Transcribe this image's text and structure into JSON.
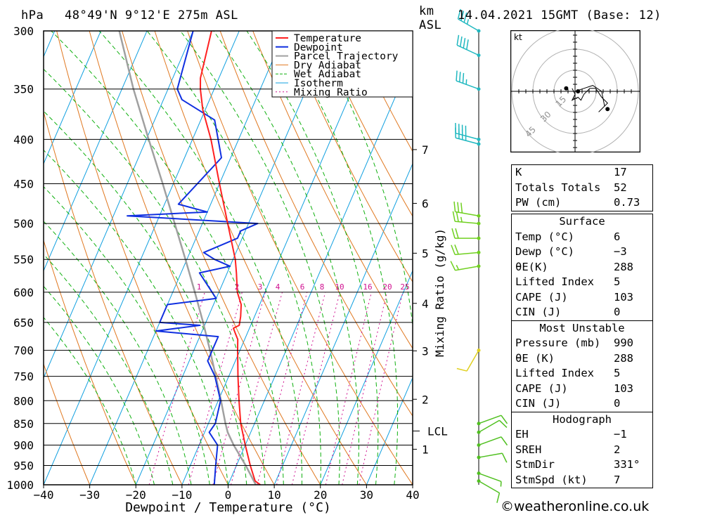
{
  "header": {
    "location": "48°49'N  9°12'E  275m  ASL",
    "datetime": "14.04.2021  15GMT  (Base: 12)",
    "hpa_label": "hPa",
    "km_label": "km",
    "asl_label": "ASL"
  },
  "footer": {
    "copyright": "©weatheronline.co.uk"
  },
  "colors": {
    "temperature": "#ff2020",
    "dewpoint": "#1030e0",
    "parcel": "#a0a0a0",
    "dry_adiabat": "#e07820",
    "wet_adiabat": "#10b010",
    "isotherm": "#10a0e0",
    "mixing_ratio": "#d01090",
    "wind": "#20c0c0"
  },
  "chart_data": {
    "type": "skew-t",
    "xlabel": "Dewpoint / Temperature (°C)",
    "ylabel_right": "Mixing Ratio (g/kg)",
    "x_ticks": [
      -40,
      -30,
      -20,
      -10,
      0,
      10,
      20,
      30,
      40
    ],
    "pressure_levels": [
      300,
      350,
      400,
      450,
      500,
      550,
      600,
      650,
      700,
      750,
      800,
      850,
      900,
      950,
      1000
    ],
    "km_ticks": [
      {
        "km": "1",
        "p": 910
      },
      {
        "km": "2",
        "p": 797
      },
      {
        "km": "3",
        "p": 701
      },
      {
        "km": "4",
        "p": 618
      },
      {
        "km": "5",
        "p": 541
      },
      {
        "km": "6",
        "p": 474
      },
      {
        "km": "7",
        "p": 411
      }
    ],
    "lcl": {
      "label": "LCL",
      "p": 867
    },
    "mixing_ratio_labels": [
      "1",
      "2",
      "3",
      "4",
      "6",
      "8",
      "10",
      "16",
      "20",
      "25"
    ],
    "legend": [
      {
        "name": "Temperature",
        "key": "temperature"
      },
      {
        "name": "Dewpoint",
        "key": "dewpoint"
      },
      {
        "name": "Parcel Trajectory",
        "key": "parcel"
      },
      {
        "name": "Dry Adiabat",
        "key": "dry_adiabat"
      },
      {
        "name": "Wet Adiabat",
        "key": "wet_adiabat"
      },
      {
        "name": "Isotherm",
        "key": "isotherm"
      },
      {
        "name": "Mixing Ratio",
        "key": "mixing_ratio"
      }
    ],
    "temperature": [
      {
        "p": 1000,
        "t": 7
      },
      {
        "p": 990,
        "t": 5.5
      },
      {
        "p": 950,
        "t": 3
      },
      {
        "p": 900,
        "t": 0
      },
      {
        "p": 850,
        "t": -3
      },
      {
        "p": 800,
        "t": -5.5
      },
      {
        "p": 750,
        "t": -8
      },
      {
        "p": 700,
        "t": -10.5
      },
      {
        "p": 680,
        "t": -11.5
      },
      {
        "p": 670,
        "t": -12.5
      },
      {
        "p": 660,
        "t": -13.5
      },
      {
        "p": 655,
        "t": -12.5
      },
      {
        "p": 640,
        "t": -13
      },
      {
        "p": 620,
        "t": -14
      },
      {
        "p": 600,
        "t": -16
      },
      {
        "p": 570,
        "t": -18
      },
      {
        "p": 550,
        "t": -19.5
      },
      {
        "p": 500,
        "t": -24.5
      },
      {
        "p": 450,
        "t": -30
      },
      {
        "p": 400,
        "t": -36
      },
      {
        "p": 370,
        "t": -40.5
      },
      {
        "p": 350,
        "t": -43
      },
      {
        "p": 340,
        "t": -44
      },
      {
        "p": 300,
        "t": -46
      }
    ],
    "dewpoint": [
      {
        "p": 1000,
        "t": -3
      },
      {
        "p": 950,
        "t": -4.5
      },
      {
        "p": 900,
        "t": -6
      },
      {
        "p": 870,
        "t": -9
      },
      {
        "p": 850,
        "t": -8.5
      },
      {
        "p": 800,
        "t": -9.5
      },
      {
        "p": 750,
        "t": -13
      },
      {
        "p": 720,
        "t": -16
      },
      {
        "p": 700,
        "t": -16
      },
      {
        "p": 675,
        "t": -16
      },
      {
        "p": 665,
        "t": -30
      },
      {
        "p": 655,
        "t": -21
      },
      {
        "p": 650,
        "t": -30
      },
      {
        "p": 620,
        "t": -30
      },
      {
        "p": 610,
        "t": -20
      },
      {
        "p": 570,
        "t": -26
      },
      {
        "p": 560,
        "t": -20
      },
      {
        "p": 550,
        "t": -24
      },
      {
        "p": 540,
        "t": -27
      },
      {
        "p": 520,
        "t": -21
      },
      {
        "p": 510,
        "t": -21
      },
      {
        "p": 500,
        "t": -18
      },
      {
        "p": 490,
        "t": -47
      },
      {
        "p": 485,
        "t": -30
      },
      {
        "p": 475,
        "t": -37
      },
      {
        "p": 420,
        "t": -32
      },
      {
        "p": 380,
        "t": -37
      },
      {
        "p": 360,
        "t": -46
      },
      {
        "p": 350,
        "t": -48
      },
      {
        "p": 300,
        "t": -50
      }
    ],
    "parcel": [
      {
        "p": 1000,
        "t": 6
      },
      {
        "p": 950,
        "t": 2
      },
      {
        "p": 900,
        "t": -2.5
      },
      {
        "p": 870,
        "t": -5
      },
      {
        "p": 850,
        "t": -6.3
      },
      {
        "p": 800,
        "t": -9.4
      },
      {
        "p": 750,
        "t": -12.8
      },
      {
        "p": 700,
        "t": -16.5
      },
      {
        "p": 650,
        "t": -20.6
      },
      {
        "p": 600,
        "t": -25.2
      },
      {
        "p": 550,
        "t": -30.3
      },
      {
        "p": 500,
        "t": -36
      },
      {
        "p": 450,
        "t": -42.3
      },
      {
        "p": 400,
        "t": -49.5
      },
      {
        "p": 350,
        "t": -57.5
      },
      {
        "p": 300,
        "t": -66
      }
    ],
    "wind_barbs": [
      {
        "p": 300,
        "dir": 300,
        "spd": 35
      },
      {
        "p": 320,
        "dir": 295,
        "spd": 40
      },
      {
        "p": 350,
        "dir": 290,
        "spd": 35
      },
      {
        "p": 400,
        "dir": 285,
        "spd": 40
      },
      {
        "p": 405,
        "dir": 285,
        "spd": 35
      },
      {
        "p": 490,
        "dir": 280,
        "spd": 30
      },
      {
        "p": 500,
        "dir": 275,
        "spd": 25
      },
      {
        "p": 520,
        "dir": 270,
        "spd": 20
      },
      {
        "p": 540,
        "dir": 265,
        "spd": 20
      },
      {
        "p": 560,
        "dir": 260,
        "spd": 15
      },
      {
        "p": 700,
        "dir": 210,
        "spd": 10
      },
      {
        "p": 850,
        "dir": 70,
        "spd": 10
      },
      {
        "p": 870,
        "dir": 60,
        "spd": 10
      },
      {
        "p": 900,
        "dir": 70,
        "spd": 10
      },
      {
        "p": 930,
        "dir": 80,
        "spd": 10
      },
      {
        "p": 970,
        "dir": 110,
        "spd": 5
      },
      {
        "p": 990,
        "dir": 120,
        "spd": 10
      }
    ],
    "hodograph": {
      "unit": "kt",
      "ring_labels": [
        "15",
        "30",
        "45"
      ],
      "trace": [
        [
          -1,
          1
        ],
        [
          0,
          -1
        ],
        [
          -1,
          -3
        ],
        [
          1,
          -2
        ],
        [
          2,
          -3
        ],
        [
          3,
          -1
        ],
        [
          5,
          1
        ],
        [
          7,
          1
        ],
        [
          9,
          -2
        ],
        [
          11,
          -4
        ],
        [
          10,
          -5
        ],
        [
          8,
          -7
        ],
        [
          10,
          -5
        ],
        [
          9,
          0
        ],
        [
          6,
          2
        ],
        [
          3,
          1
        ],
        [
          0,
          0
        ]
      ]
    }
  },
  "indices": {
    "top": [
      {
        "label": "K",
        "value": "17"
      },
      {
        "label": "Totals Totals",
        "value": "52"
      },
      {
        "label": "PW (cm)",
        "value": "0.73"
      }
    ],
    "surface": {
      "title": "Surface",
      "rows": [
        {
          "label": "Temp (°C)",
          "value": "6"
        },
        {
          "label": "Dewp (°C)",
          "value": "−3"
        },
        {
          "label": "θE(K)",
          "value": "288"
        },
        {
          "label": "Lifted Index",
          "value": "5"
        },
        {
          "label": "CAPE (J)",
          "value": "103"
        },
        {
          "label": "CIN (J)",
          "value": "0"
        }
      ]
    },
    "most_unstable": {
      "title": "Most Unstable",
      "rows": [
        {
          "label": "Pressure (mb)",
          "value": "990"
        },
        {
          "label": "θE (K)",
          "value": "288"
        },
        {
          "label": "Lifted Index",
          "value": "5"
        },
        {
          "label": "CAPE (J)",
          "value": "103"
        },
        {
          "label": "CIN (J)",
          "value": "0"
        }
      ]
    },
    "hodograph": {
      "title": "Hodograph",
      "rows": [
        {
          "label": "EH",
          "value": "−1"
        },
        {
          "label": "SREH",
          "value": "2"
        },
        {
          "label": "StmDir",
          "value": "331°"
        },
        {
          "label": "StmSpd (kt)",
          "value": "7"
        }
      ]
    }
  }
}
